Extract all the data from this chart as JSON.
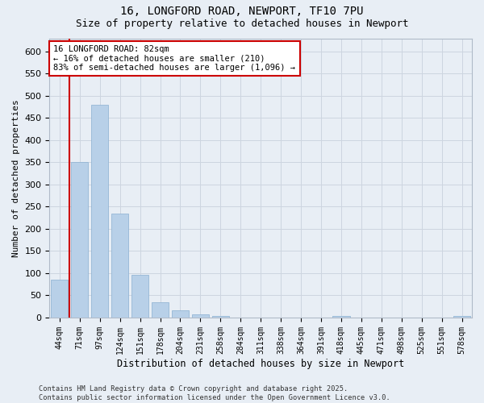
{
  "title1": "16, LONGFORD ROAD, NEWPORT, TF10 7PU",
  "title2": "Size of property relative to detached houses in Newport",
  "xlabel": "Distribution of detached houses by size in Newport",
  "ylabel": "Number of detached properties",
  "categories": [
    "44sqm",
    "71sqm",
    "97sqm",
    "124sqm",
    "151sqm",
    "178sqm",
    "204sqm",
    "231sqm",
    "258sqm",
    "284sqm",
    "311sqm",
    "338sqm",
    "364sqm",
    "391sqm",
    "418sqm",
    "445sqm",
    "471sqm",
    "498sqm",
    "525sqm",
    "551sqm",
    "578sqm"
  ],
  "values": [
    85,
    350,
    480,
    235,
    97,
    35,
    16,
    7,
    4,
    0,
    0,
    0,
    0,
    0,
    3,
    0,
    0,
    0,
    0,
    0,
    3
  ],
  "bar_color": "#b8d0e8",
  "bar_edge_color": "#8aafd0",
  "grid_color": "#cdd5e0",
  "background_color": "#e8eef5",
  "vline_color": "#cc0000",
  "vline_x": 0.5,
  "annotation_text": "16 LONGFORD ROAD: 82sqm\n← 16% of detached houses are smaller (210)\n83% of semi-detached houses are larger (1,096) →",
  "footer": "Contains HM Land Registry data © Crown copyright and database right 2025.\nContains public sector information licensed under the Open Government Licence v3.0.",
  "ylim": [
    0,
    630
  ],
  "yticks": [
    0,
    50,
    100,
    150,
    200,
    250,
    300,
    350,
    400,
    450,
    500,
    550,
    600
  ]
}
